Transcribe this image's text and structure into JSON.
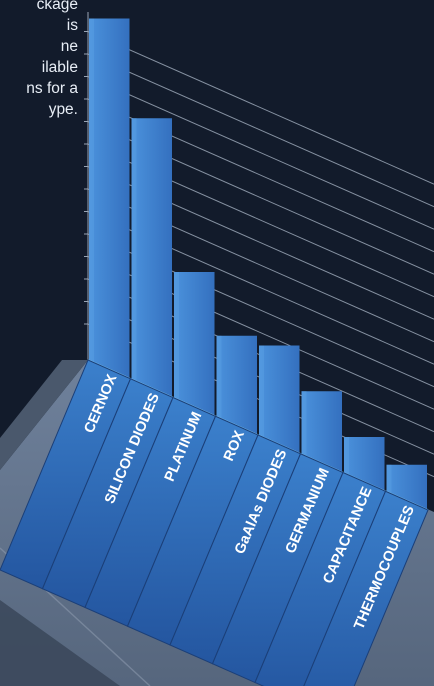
{
  "intro_lines": [
    "ckage",
    "is",
    "ne",
    "ilable",
    "ns for a",
    "ype."
  ],
  "chart_data": {
    "type": "bar",
    "title": "",
    "xlabel": "",
    "ylabel": "",
    "categories": [
      "CERNOX",
      "SILICON DIODES",
      "PLATINUM",
      "ROX",
      "GaAlAs DIODES",
      "GERMANIUM",
      "CAPACITANCE",
      "THERMOCOUPLES"
    ],
    "values": [
      34,
      25,
      10,
      5,
      6,
      3,
      0,
      -1
    ],
    "ylim": [
      -4,
      34
    ],
    "grid": true,
    "colors": {
      "bar": "#3f86d2",
      "bar_front": "#2f6fb8",
      "label_band": "#2a64ae",
      "platform_top": "#5f7088",
      "platform_side": "#3a4759",
      "grid": "#9aa6b6",
      "rim": "#7ec6ec"
    }
  }
}
